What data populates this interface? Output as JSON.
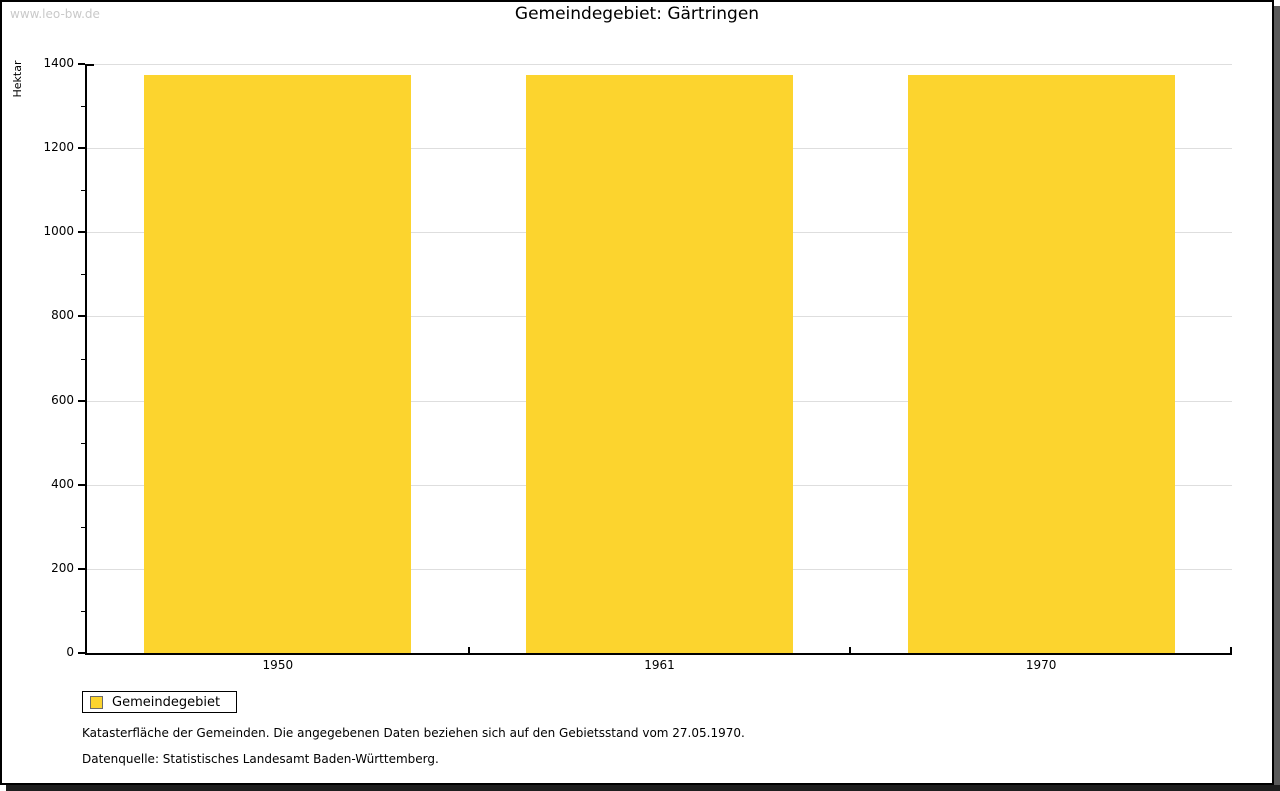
{
  "watermark": "www.leo-bw.de",
  "title": "Gemeindegebiet: Gärtringen",
  "legend": {
    "label": "Gemeindegebiet"
  },
  "captions": {
    "line1": "Katasterfläche der Gemeinden. Die angegebenen Daten beziehen sich auf den Gebietsstand vom 27.05.1970.",
    "line2": "Datenquelle: Statistisches Landesamt Baden-Württemberg."
  },
  "colors": {
    "bar": "#fcd42e",
    "grid": "#dedede",
    "axis": "#000000",
    "text": "#000000",
    "watermark": "#c9c9c9",
    "legend_swatch_border": "#6b6b6b",
    "frame_border": "#000000",
    "shadow_right": "#5a5a5a",
    "shadow_bottom": "#1e1e1e"
  },
  "chart_data": {
    "type": "bar",
    "categories": [
      "1950",
      "1961",
      "1970"
    ],
    "series": [
      {
        "name": "Gemeindegebiet",
        "values": [
          1375,
          1375,
          1375
        ]
      }
    ],
    "title": "Gemeindegebiet: Gärtringen",
    "xlabel": "",
    "ylabel": "Hektar",
    "ylim": [
      0,
      1400
    ],
    "ytick_major": 200,
    "ytick_minor": 100,
    "ytick_labels": [
      "0",
      "200",
      "400",
      "600",
      "800",
      "1000",
      "1200",
      "1400"
    ],
    "grid": true,
    "bar_width_fraction": 0.7,
    "legend_position": "bottom-left"
  }
}
